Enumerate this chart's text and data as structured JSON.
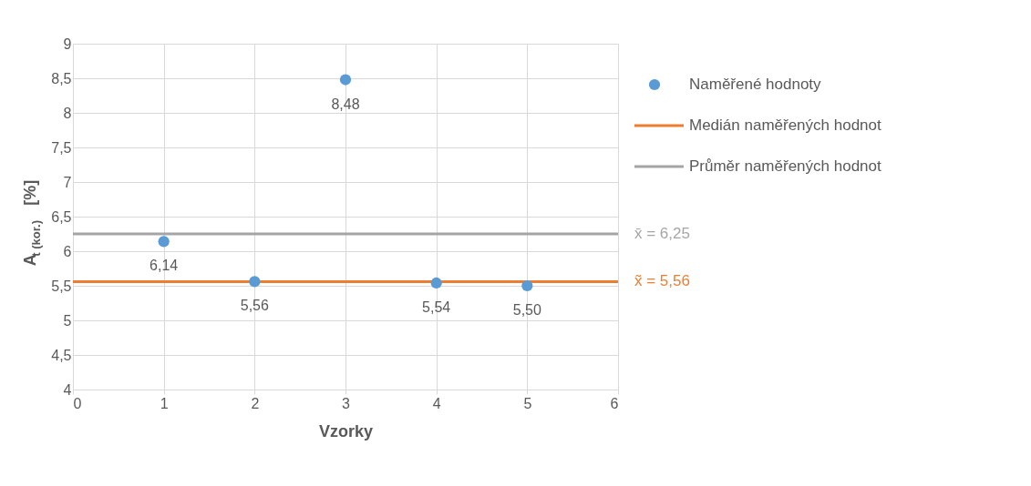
{
  "chart_data": {
    "type": "scatter",
    "xlabel": "Vzorky",
    "ylabel": "A$_{t (kor.)}$ [%]",
    "series": [
      {
        "name": "Naměřené hodnoty",
        "marker": "circle",
        "color": "#5b9bd5",
        "x": [
          1,
          2,
          3,
          4,
          5
        ],
        "values": [
          6.14,
          5.56,
          8.48,
          5.54,
          5.5
        ],
        "value_labels": [
          "6,14",
          "5,56",
          "8,48",
          "5,54",
          "5,50"
        ]
      },
      {
        "name": "Medián naměřených hodnot",
        "type": "line",
        "color": "#ed7d31",
        "x": [
          0,
          6
        ],
        "values": [
          5.56,
          5.56
        ]
      },
      {
        "name": "Průměr naměřených hodnot",
        "type": "line",
        "color": "#a5a5a5",
        "x": [
          0,
          6
        ],
        "values": [
          6.25,
          6.25
        ]
      }
    ],
    "annotations": [
      "x̄ = 6,25",
      "x̃ = 5,56"
    ],
    "xlim": [
      0,
      6
    ],
    "xticks": [
      0,
      1,
      2,
      3,
      4,
      5,
      6
    ],
    "ylim": [
      4,
      9
    ],
    "yticks": [
      4,
      {
        "value": 4.5,
        "label": "4,5"
      },
      5,
      {
        "value": 5.5,
        "label": "5,5"
      },
      6,
      {
        "value": 6.5,
        "label": "6,5"
      },
      7,
      {
        "value": 7.5,
        "label": "7,5"
      },
      8,
      {
        "value": 8.5,
        "label": "8,5"
      },
      9
    ],
    "grid": true,
    "legend": "right"
  }
}
